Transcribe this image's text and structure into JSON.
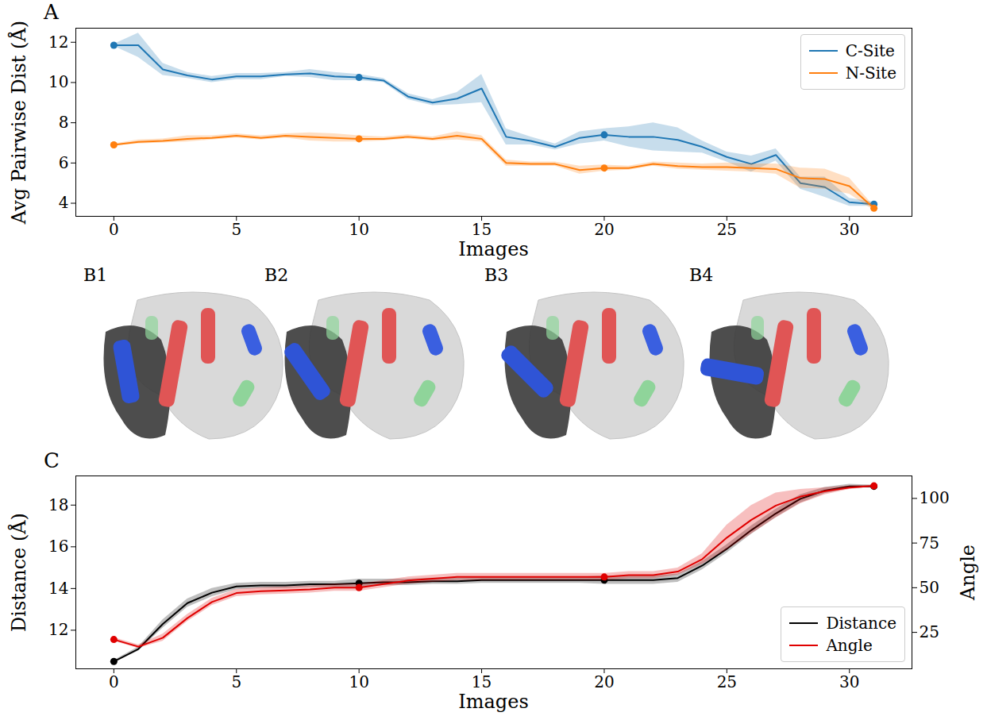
{
  "chart_data": [
    {
      "panel": "A",
      "type": "line",
      "x_label": "Images",
      "y_label": "Avg Pairwise Dist (Å)",
      "x": [
        0,
        1,
        2,
        3,
        4,
        5,
        6,
        7,
        8,
        9,
        10,
        11,
        12,
        13,
        14,
        15,
        16,
        17,
        18,
        19,
        20,
        21,
        22,
        23,
        24,
        25,
        26,
        27,
        28,
        29,
        30,
        31
      ],
      "xlim": [
        -1.55,
        32.55
      ],
      "xticks": [
        0,
        5,
        10,
        15,
        20,
        25,
        30
      ],
      "ylim": [
        3.35,
        12.7
      ],
      "yticks": [
        4,
        6,
        8,
        10,
        12
      ],
      "legend": "upper right",
      "marker": "o",
      "marked_x": [
        0,
        10,
        20,
        31
      ],
      "series": [
        {
          "name": "C-Site",
          "color": "#1f77b4",
          "values": [
            11.85,
            11.85,
            10.65,
            10.35,
            10.15,
            10.3,
            10.3,
            10.4,
            10.45,
            10.3,
            10.25,
            10.1,
            9.3,
            9.0,
            9.2,
            9.7,
            7.3,
            7.1,
            6.8,
            7.25,
            7.4,
            7.3,
            7.3,
            7.15,
            6.8,
            6.3,
            5.95,
            6.4,
            5.0,
            4.8,
            4.05,
            3.95
          ],
          "error": [
            0.05,
            0.6,
            0.3,
            0.15,
            0.15,
            0.15,
            0.15,
            0.1,
            0.2,
            0.2,
            0.15,
            0.1,
            0.15,
            0.15,
            0.3,
            0.7,
            0.4,
            0.2,
            0.15,
            0.3,
            0.3,
            0.5,
            0.7,
            0.6,
            0.3,
            0.25,
            0.4,
            0.3,
            0.3,
            0.5,
            0.2,
            0.1
          ]
        },
        {
          "name": "N-Site",
          "color": "#ff7f0e",
          "values": [
            6.9,
            7.05,
            7.1,
            7.2,
            7.25,
            7.35,
            7.25,
            7.35,
            7.3,
            7.25,
            7.2,
            7.2,
            7.3,
            7.2,
            7.35,
            7.2,
            6.0,
            5.95,
            5.95,
            5.65,
            5.75,
            5.75,
            5.95,
            5.85,
            5.8,
            5.8,
            5.75,
            5.7,
            5.25,
            5.2,
            4.85,
            3.75
          ],
          "error": [
            0.05,
            0.1,
            0.1,
            0.15,
            0.1,
            0.1,
            0.1,
            0.1,
            0.2,
            0.2,
            0.15,
            0.1,
            0.1,
            0.1,
            0.2,
            0.15,
            0.15,
            0.1,
            0.1,
            0.2,
            0.15,
            0.1,
            0.1,
            0.15,
            0.15,
            0.2,
            0.2,
            0.25,
            0.5,
            0.5,
            0.4,
            0.1
          ]
        }
      ]
    },
    {
      "panel": "C",
      "type": "line",
      "x_label": "Images",
      "y_label": "Distance (Å)",
      "y2_label": "Angle",
      "x": [
        0,
        1,
        2,
        3,
        4,
        5,
        6,
        7,
        8,
        9,
        10,
        11,
        12,
        13,
        14,
        15,
        16,
        17,
        18,
        19,
        20,
        21,
        22,
        23,
        24,
        25,
        26,
        27,
        28,
        29,
        30,
        31
      ],
      "xlim": [
        -1.55,
        32.55
      ],
      "xticks": [
        0,
        5,
        10,
        15,
        20,
        25,
        30
      ],
      "ylim": [
        10.15,
        19.4
      ],
      "yticks": [
        12,
        14,
        16,
        18
      ],
      "y2lim": [
        4.6,
        112.6
      ],
      "y2ticks": [
        25,
        50,
        75,
        100
      ],
      "legend": "lower right",
      "marker": "o",
      "marked_x": [
        0,
        10,
        20,
        31
      ],
      "series": [
        {
          "name": "Distance",
          "color": "#000000",
          "values": [
            10.5,
            11.1,
            12.3,
            13.3,
            13.8,
            14.1,
            14.15,
            14.15,
            14.2,
            14.2,
            14.25,
            14.3,
            14.3,
            14.35,
            14.35,
            14.4,
            14.4,
            14.4,
            14.4,
            14.4,
            14.4,
            14.4,
            14.4,
            14.5,
            15.1,
            15.9,
            16.8,
            17.6,
            18.3,
            18.7,
            18.9,
            18.9
          ],
          "error": [
            0.05,
            0.1,
            0.2,
            0.2,
            0.2,
            0.15,
            0.15,
            0.15,
            0.15,
            0.15,
            0.2,
            0.15,
            0.15,
            0.15,
            0.15,
            0.15,
            0.15,
            0.15,
            0.15,
            0.15,
            0.2,
            0.2,
            0.2,
            0.2,
            0.2,
            0.2,
            0.2,
            0.2,
            0.2,
            0.15,
            0.1,
            0.05
          ]
        },
        {
          "name": "Angle",
          "color": "#e00000",
          "axis": "y2",
          "values": [
            21,
            17,
            22,
            33,
            42,
            47,
            48,
            48.5,
            49,
            50,
            50,
            52,
            54,
            55,
            56,
            56,
            56,
            56,
            56,
            56,
            56,
            57,
            57,
            59,
            66,
            78,
            88,
            96,
            101,
            104,
            106,
            107
          ],
          "error": [
            1,
            1,
            2,
            2,
            2,
            2,
            2,
            2,
            2,
            2,
            2,
            2,
            2,
            2,
            2,
            2,
            2,
            2,
            2,
            2,
            2,
            2,
            2,
            2,
            3,
            7,
            8,
            7,
            4,
            2,
            1,
            0.5
          ]
        }
      ]
    }
  ],
  "image_panels": [
    {
      "label": "B1"
    },
    {
      "label": "B2"
    },
    {
      "label": "B3"
    },
    {
      "label": "B4"
    }
  ]
}
